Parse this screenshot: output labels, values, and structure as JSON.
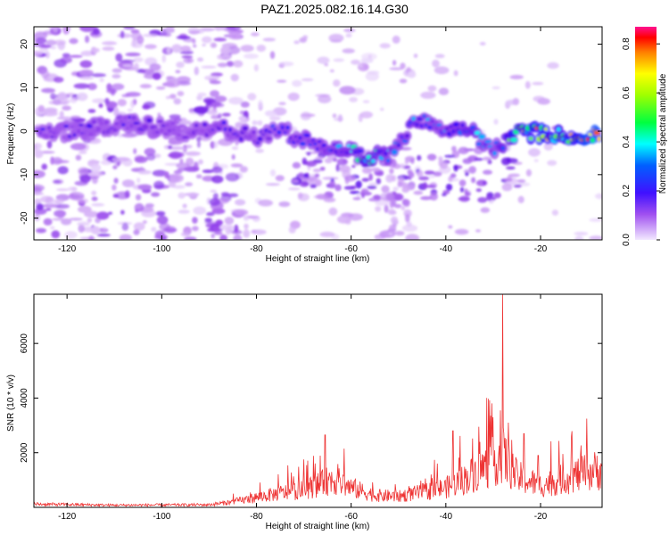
{
  "title": "PAZ1.2025.082.16.14.G30",
  "chart_data": [
    {
      "type": "heatmap",
      "xlabel": "Height of straight line (km)",
      "ylabel": "Frequency (Hz)",
      "xlim": [
        -127,
        -7
      ],
      "ylim": [
        -25,
        24
      ],
      "xticks": [
        -120,
        -100,
        -80,
        -60,
        -40,
        -20
      ],
      "yticks": [
        -20,
        -10,
        0,
        10,
        20
      ],
      "colorbar": {
        "label": "Normalized spectral amplitude",
        "range": [
          0,
          0.87
        ],
        "ticks": [
          0.0,
          0.2,
          0.4,
          0.6,
          0.8
        ],
        "tick_labels": [
          "0.0",
          "0.2",
          "0.4",
          "0.6",
          "0.8"
        ],
        "colormap": [
          "#e0c8f8",
          "#8a2be2",
          "#2000ff",
          "#00ffff",
          "#00ff00",
          "#ffff00",
          "#ff0000",
          "#ff1090"
        ]
      },
      "signal_track": [
        {
          "x": -125,
          "freq": -0.5,
          "amp": 0.3
        },
        {
          "x": -118,
          "freq": 0.0,
          "amp": 0.28
        },
        {
          "x": -108,
          "freq": 2.0,
          "amp": 0.3
        },
        {
          "x": -95,
          "freq": 0.0,
          "amp": 0.22
        },
        {
          "x": -88,
          "freq": 1.0,
          "amp": 0.3
        },
        {
          "x": -80,
          "freq": -1.5,
          "amp": 0.28
        },
        {
          "x": -75,
          "freq": 0.0,
          "amp": 0.38
        },
        {
          "x": -70,
          "freq": -2.0,
          "amp": 0.4
        },
        {
          "x": -65,
          "freq": -3.5,
          "amp": 0.4
        },
        {
          "x": -60,
          "freq": -4.5,
          "amp": 0.45
        },
        {
          "x": -57,
          "freq": -6.0,
          "amp": 0.52
        },
        {
          "x": -52,
          "freq": -5.5,
          "amp": 0.42
        },
        {
          "x": -46,
          "freq": 2.5,
          "amp": 0.42
        },
        {
          "x": -40,
          "freq": 0.5,
          "amp": 0.4
        },
        {
          "x": -35,
          "freq": 0.5,
          "amp": 0.48
        },
        {
          "x": -30,
          "freq": -4.5,
          "amp": 0.38
        },
        {
          "x": -25,
          "freq": 0.0,
          "amp": 0.6
        },
        {
          "x": -20,
          "freq": -0.5,
          "amp": 0.72
        },
        {
          "x": -15,
          "freq": -1.0,
          "amp": 0.62
        },
        {
          "x": -10,
          "freq": -1.0,
          "amp": 0.78
        }
      ]
    },
    {
      "type": "line",
      "xlabel": "Height of straight line (km)",
      "ylabel": "SNR (10 * v/v)",
      "xlim": [
        -127,
        -7
      ],
      "ylim": [
        0,
        7800
      ],
      "xticks": [
        -120,
        -100,
        -80,
        -60,
        -40,
        -20
      ],
      "yticks": [
        2000,
        4000,
        6000
      ],
      "color": "#ee3333",
      "envelope": [
        {
          "x": -127,
          "y": 150
        },
        {
          "x": -110,
          "y": 100
        },
        {
          "x": -90,
          "y": 120
        },
        {
          "x": -85,
          "y": 250
        },
        {
          "x": -80,
          "y": 450
        },
        {
          "x": -75,
          "y": 650
        },
        {
          "x": -70,
          "y": 800
        },
        {
          "x": -66,
          "y": 1100
        },
        {
          "x": -64,
          "y": 1300
        },
        {
          "x": -60,
          "y": 900
        },
        {
          "x": -55,
          "y": 550
        },
        {
          "x": -50,
          "y": 500
        },
        {
          "x": -45,
          "y": 700
        },
        {
          "x": -40,
          "y": 900
        },
        {
          "x": -36,
          "y": 1300
        },
        {
          "x": -32,
          "y": 1800
        },
        {
          "x": -30,
          "y": 2100
        },
        {
          "x": -28,
          "y": 2400
        },
        {
          "x": -25,
          "y": 1400
        },
        {
          "x": -20,
          "y": 1000
        },
        {
          "x": -15,
          "y": 1300
        },
        {
          "x": -12,
          "y": 1500
        },
        {
          "x": -7,
          "y": 1750
        }
      ],
      "peaks": [
        {
          "x": -65.5,
          "y": 2650
        },
        {
          "x": -61.5,
          "y": 2150
        },
        {
          "x": -38.5,
          "y": 2800
        },
        {
          "x": -33,
          "y": 2950
        },
        {
          "x": -30,
          "y": 3300
        },
        {
          "x": -28,
          "y": 7800
        },
        {
          "x": -26.8,
          "y": 3100
        },
        {
          "x": -23.5,
          "y": 2700
        },
        {
          "x": -20.5,
          "y": 1900
        },
        {
          "x": -13.5,
          "y": 2600
        }
      ]
    }
  ]
}
